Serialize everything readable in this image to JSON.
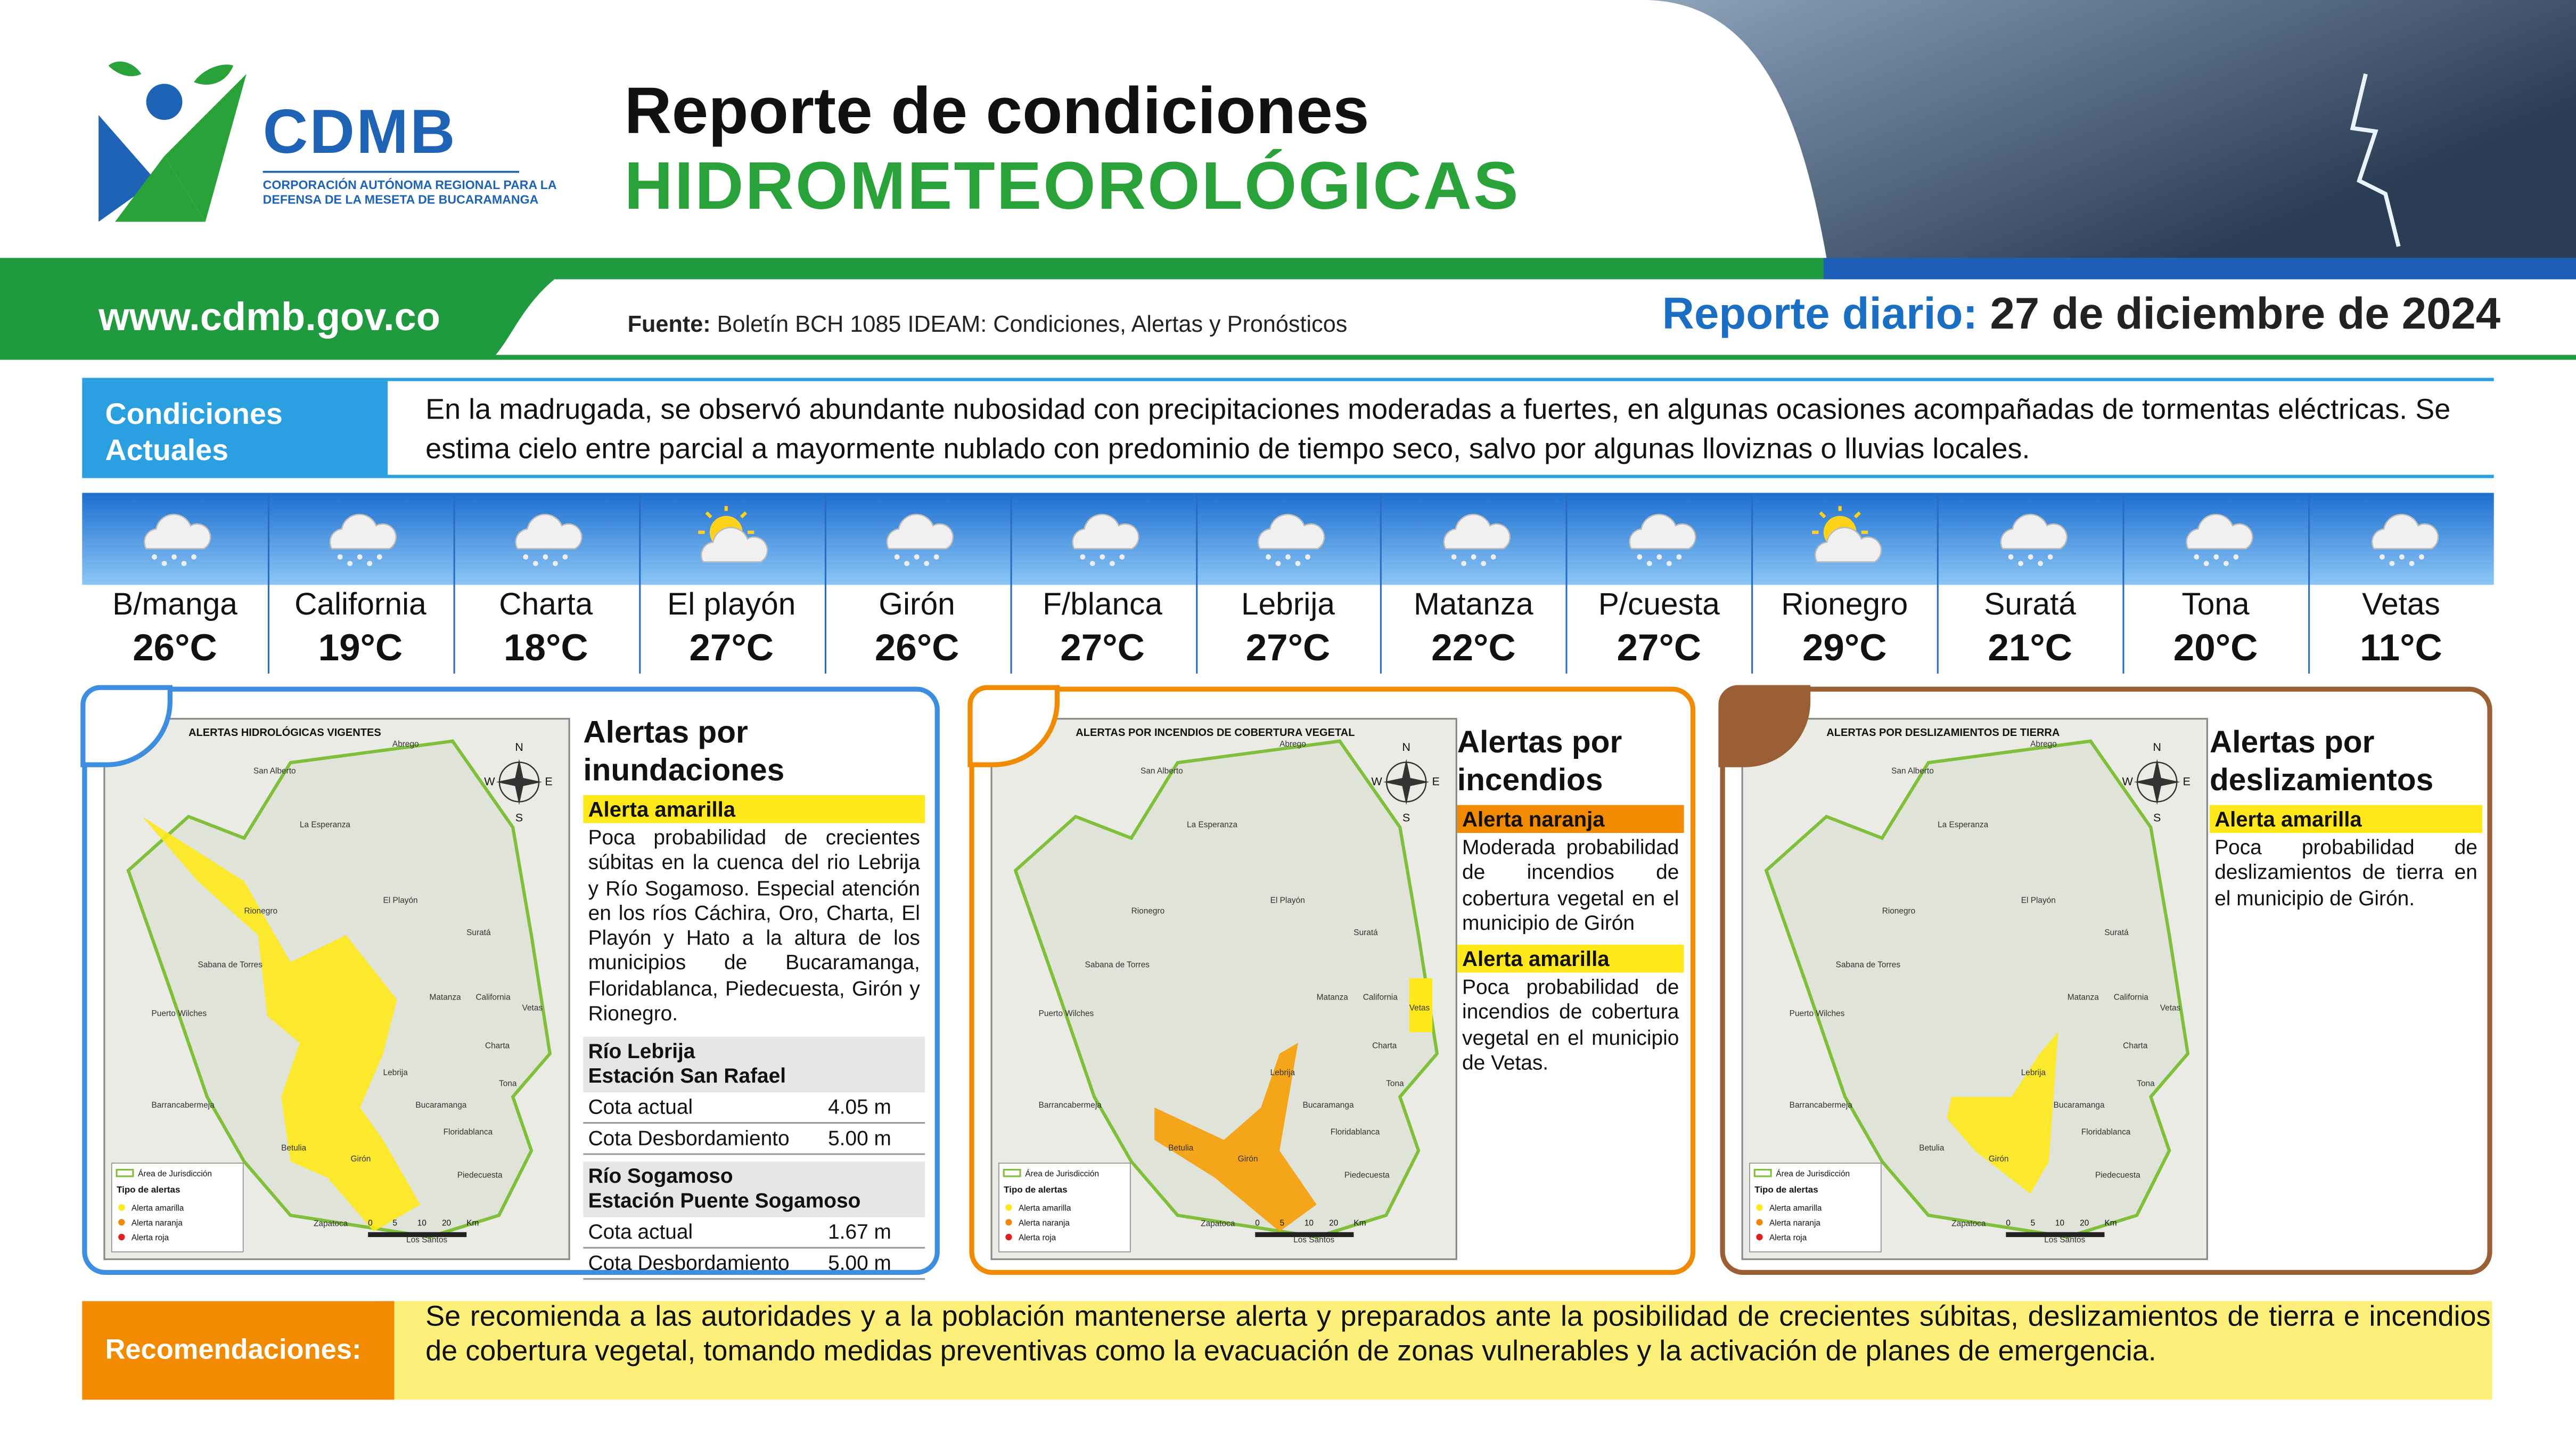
{
  "header": {
    "logo_text": "CDMB",
    "logo_subtitle_1": "CORPORACIÓN AUTÓNOMA REGIONAL PARA LA",
    "logo_subtitle_2": "DEFENSA DE LA MESETA DE BUCARAMANGA",
    "title_line1": "Reporte de condiciones",
    "title_line2": "HIDROMETEOROLÓGICAS",
    "website": "www.cdmb.gov.co",
    "source_label": "Fuente:",
    "source_text": "Boletín BCH 1085 IDEAM: Condiciones, Alertas y Pronósticos",
    "report_label": "Reporte diario:",
    "report_date": "27 de diciembre de 2024"
  },
  "conditions": {
    "label": "Condiciones Actuales",
    "text": "En la madrugada, se observó abundante nubosidad con precipitaciones moderadas a fuertes, en algunas ocasiones acompañadas de tormentas eléctricas. Se estima cielo entre parcial a mayormente nublado con predominio de tiempo seco, salvo por algunas lloviznas o lluvias locales."
  },
  "forecast": [
    {
      "city": "B/manga",
      "temp": "26°C",
      "icon": "rain"
    },
    {
      "city": "California",
      "temp": "19°C",
      "icon": "rain"
    },
    {
      "city": "Charta",
      "temp": "18°C",
      "icon": "rain"
    },
    {
      "city": "El playón",
      "temp": "27°C",
      "icon": "sun"
    },
    {
      "city": "Girón",
      "temp": "26°C",
      "icon": "rain"
    },
    {
      "city": "F/blanca",
      "temp": "27°C",
      "icon": "rain"
    },
    {
      "city": "Lebrija",
      "temp": "27°C",
      "icon": "rain"
    },
    {
      "city": "Matanza",
      "temp": "22°C",
      "icon": "rain"
    },
    {
      "city": "P/cuesta",
      "temp": "27°C",
      "icon": "rain"
    },
    {
      "city": "Rionegro",
      "temp": "29°C",
      "icon": "sun"
    },
    {
      "city": "Suratá",
      "temp": "21°C",
      "icon": "rain"
    },
    {
      "city": "Tona",
      "temp": "20°C",
      "icon": "rain"
    },
    {
      "city": "Vetas",
      "temp": "11°C",
      "icon": "rain"
    }
  ],
  "map_common": {
    "compass": [
      "N",
      "E",
      "S",
      "W"
    ],
    "scale": [
      "0",
      "5",
      "10",
      "20",
      "Km"
    ],
    "legend_area": "Área de Jurisdicción",
    "legend_title": "Tipo de alertas",
    "legend_items": [
      "Alerta amarilla",
      "Alerta naranja",
      "Alerta roja"
    ],
    "towns": [
      "Abrego",
      "San Alberto",
      "La Esperanza",
      "Rionegro",
      "El Playón",
      "Suratá",
      "Matanza",
      "California",
      "Vetas",
      "Charta",
      "Tona",
      "Lebrija",
      "Bucaramanga",
      "Floridablanca",
      "Piedecuesta",
      "Girón",
      "Betulia",
      "Barrancabermeja",
      "Los Santos",
      "Zapatoca",
      "Puerto Wilches",
      "Sabana de Torres"
    ]
  },
  "panels": [
    {
      "heading": "Alertas por inundaciones",
      "map_title": "ALERTAS HIDROLÓGICAS VIGENTES",
      "alerts": [
        {
          "level": "Alerta amarilla",
          "text": "Poca probabilidad de crecientes súbitas en la cuenca del rio Lebrija y Río Sogamoso. Especial atención en los ríos Cáchira, Oro, Charta, El Playón y Hato a la altura de los municipios de Bucaramanga, Floridablanca, Piedecuesta, Girón y Rionegro."
        }
      ],
      "stations": [
        {
          "river": "Río Lebrija",
          "station": "Estación San Rafael",
          "rows": [
            [
              "Cota actual",
              "4.05 m"
            ],
            [
              "Cota Desbordamiento",
              "5.00 m"
            ]
          ]
        },
        {
          "river": "Río Sogamoso",
          "station": "Estación Puente Sogamoso",
          "rows": [
            [
              "Cota actual",
              "1.67 m"
            ],
            [
              "Cota Desbordamiento",
              "5.00 m"
            ]
          ]
        }
      ]
    },
    {
      "heading": "Alertas por incendios",
      "map_title": "ALERTAS POR INCENDIOS DE COBERTURA VEGETAL",
      "alerts": [
        {
          "level": "Alerta naranja",
          "text": "Moderada probabilidad de incendios de cobertura vegetal en el municipio de Girón"
        },
        {
          "level": "Alerta amarilla",
          "text": "Poca probabilidad de incendios de cobertura vegetal en el municipio de Vetas."
        }
      ],
      "stations": []
    },
    {
      "heading": "Alertas por deslizamientos",
      "map_title": "ALERTAS POR DESLIZAMIENTOS DE TIERRA",
      "alerts": [
        {
          "level": "Alerta amarilla",
          "text": "Poca probabilidad de deslizamientos de tierra en el municipio de Girón."
        }
      ],
      "stations": []
    }
  ],
  "recommendations": {
    "label": "Recomendaciones:",
    "text": "Se recomienda a las autoridades y a la población mantenerse alerta y preparados ante la posibilidad de crecientes súbitas, deslizamientos de tierra e incendios de cobertura vegetal, tomando medidas preventivas como la evacuación de zonas vulnerables y la activación de planes de emergencia."
  }
}
